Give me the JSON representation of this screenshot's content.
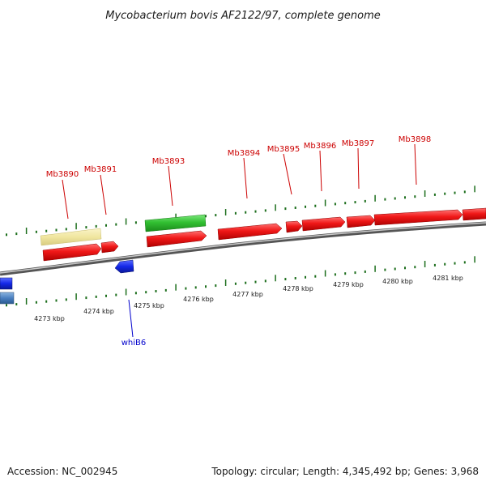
{
  "title": "Mycobacterium bovis AF2122/97, complete genome",
  "footer": {
    "accession": "Accession: NC_002945",
    "summary": "Topology: circular; Length: 4,345,492 bp; Genes: 3,968"
  },
  "colors": {
    "forward_cds": "#e01010",
    "reverse_cds": "#1030e0",
    "reverse_cds_light": "#4a7fc0",
    "green_feature": "#30c030",
    "yellow_feature": "#f0e6a0",
    "axis": "#7a7a7a",
    "ticks": "#1c6e1c",
    "forward_label": "#cc0000",
    "reverse_label": "#0000cc"
  },
  "scale_labels": [
    "4273 kbp",
    "4274 kbp",
    "4275 kbp",
    "4276 kbp",
    "4277 kbp",
    "4278 kbp",
    "4279 kbp",
    "4280 kbp",
    "4281 kbp"
  ],
  "forward_gene_labels": [
    "Mb3890",
    "Mb3891",
    "Mb3893",
    "Mb3894",
    "Mb3895",
    "Mb3896",
    "Mb3897",
    "Mb3898"
  ],
  "reverse_gene_labels": [
    "whiB6"
  ]
}
